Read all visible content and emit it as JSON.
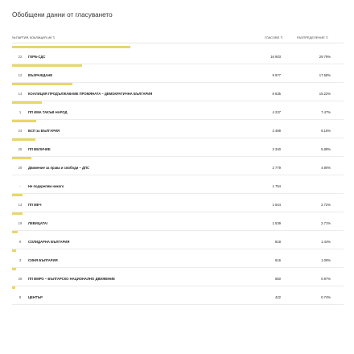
{
  "header": {
    "title": "Обобщени данни от гласуването",
    "col_party": "№ ПАРТИЯ, КОАЛИЦИЯ, ИК",
    "col_votes": "ГЛАСОВЕ",
    "col_percent": "РАЗПРЕДЕЛЕНИЕ",
    "sort_icon": "⇅"
  },
  "rows": [
    {
      "num": "22",
      "name": "ГЕРБ-СДС",
      "votes": "16 903",
      "percent": "29.79%",
      "share": 0.2979
    },
    {
      "num": "12",
      "name": "ВЪЗРАЖДАНЕ",
      "votes": "9 977",
      "percent": "17.58%",
      "share": 0.1758
    },
    {
      "num": "14",
      "name": "КОАЛИЦИЯ ПРОДЪЛЖАВАМЕ ПРОМЯНАТА – ДЕМОКРАТИЧНА БЪЛГАРИЯ",
      "votes": "8 635",
      "percent": "15.22%",
      "share": 0.1522
    },
    {
      "num": "1",
      "name": "ПП ИМА ТАКЪВ НАРОД",
      "votes": "4 237",
      "percent": "7.47%",
      "share": 0.0747
    },
    {
      "num": "24",
      "name": "БСП за БЪЛГАРИЯ",
      "votes": "3 489",
      "percent": "6.15%",
      "share": 0.0615
    },
    {
      "num": "25",
      "name": "ПП ВЕЛИЧИЕ",
      "votes": "3 340",
      "percent": "5.89%",
      "share": 0.0589
    },
    {
      "num": "28",
      "name": "Движение за права и свободи – ДПС",
      "votes": "2 779",
      "percent": "4.90%",
      "share": 0.049
    },
    {
      "num": "-",
      "name": "Не подкрепям никого",
      "votes": "1 754",
      "percent": "",
      "share": 0
    },
    {
      "num": "13",
      "name": "ПП МЕЧ",
      "votes": "1 544",
      "percent": "2.72%",
      "share": 0.0272
    },
    {
      "num": "19",
      "name": "ЛЕВИЦАТА!",
      "votes": "1 539",
      "percent": "2.71%",
      "share": 0.0271
    },
    {
      "num": "9",
      "name": "СОЛИДАРНА БЪЛГАРИЯ",
      "votes": "818",
      "percent": "1.44%",
      "share": 0.0144
    },
    {
      "num": "3",
      "name": "СИНЯ БЪЛГАРИЯ",
      "votes": "616",
      "percent": "1.09%",
      "share": 0.0109
    },
    {
      "num": "26",
      "name": "ПП ВМРО – БЪЛГАРСКО НАЦИОНАЛНО ДВИЖЕНИЕ",
      "votes": "550",
      "percent": "0.97%",
      "share": 0.0097
    },
    {
      "num": "8",
      "name": "ЦЕНТЪР",
      "votes": "422",
      "percent": "0.74%",
      "share": 0.0074
    }
  ]
}
